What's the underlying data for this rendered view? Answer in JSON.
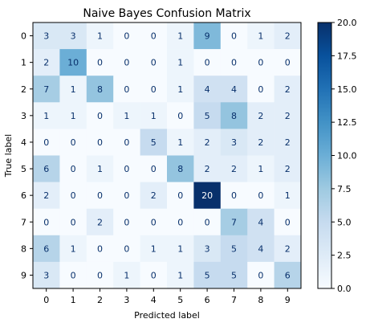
{
  "chart_data": {
    "type": "heatmap",
    "title": "Naive Bayes Confusion Matrix",
    "xlabel": "Predicted label",
    "ylabel": "True label",
    "x_categories": [
      "0",
      "1",
      "2",
      "3",
      "4",
      "5",
      "6",
      "7",
      "8",
      "9"
    ],
    "y_categories": [
      "0",
      "1",
      "2",
      "3",
      "4",
      "5",
      "6",
      "7",
      "8",
      "9"
    ],
    "matrix": [
      [
        3,
        3,
        1,
        0,
        0,
        1,
        9,
        0,
        1,
        2
      ],
      [
        2,
        10,
        0,
        0,
        0,
        1,
        0,
        0,
        0,
        0
      ],
      [
        7,
        1,
        8,
        0,
        0,
        1,
        4,
        4,
        0,
        2
      ],
      [
        1,
        1,
        0,
        1,
        1,
        0,
        5,
        8,
        2,
        2
      ],
      [
        0,
        0,
        0,
        0,
        5,
        1,
        2,
        3,
        2,
        2
      ],
      [
        6,
        0,
        1,
        0,
        0,
        8,
        2,
        2,
        1,
        2
      ],
      [
        2,
        0,
        0,
        0,
        2,
        0,
        20,
        0,
        0,
        1
      ],
      [
        0,
        0,
        2,
        0,
        0,
        0,
        0,
        7,
        4,
        0
      ],
      [
        6,
        1,
        0,
        0,
        1,
        1,
        3,
        5,
        4,
        2
      ],
      [
        3,
        0,
        0,
        1,
        0,
        1,
        5,
        5,
        0,
        6
      ]
    ],
    "colormap": "Blues",
    "color_range": [
      0,
      20
    ],
    "colorbar_ticks": [
      "0.0",
      "2.5",
      "5.0",
      "7.5",
      "10.0",
      "12.5",
      "15.0",
      "17.5",
      "20.0"
    ],
    "grid": false
  }
}
